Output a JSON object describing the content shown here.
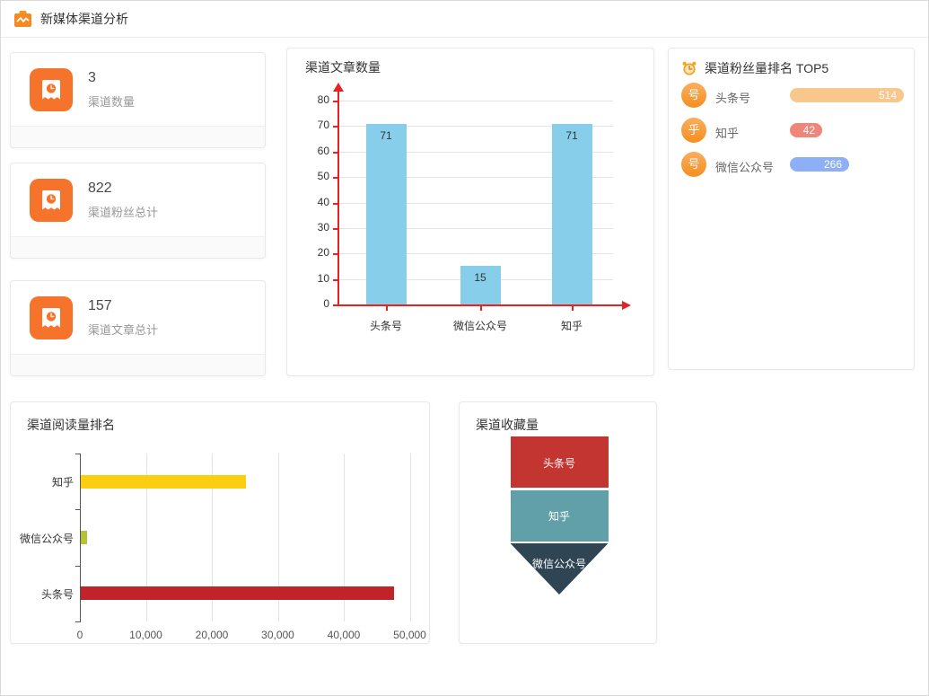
{
  "header": {
    "title": "新媒体渠道分析"
  },
  "palette": {
    "accent_orange": "#F6732B",
    "avatar_gradient_top": "#FBAE5E",
    "avatar_gradient_bottom": "#F58E1E",
    "panel_border": "#e8e8e8",
    "grid_line": "#e3e3e3"
  },
  "stats": [
    {
      "value": "3",
      "label": "渠道数量"
    },
    {
      "value": "822",
      "label": "渠道粉丝总计"
    },
    {
      "value": "157",
      "label": "渠道文章总计"
    }
  ],
  "chart_data": [
    {
      "type": "bar",
      "title": "渠道文章数量",
      "categories": [
        "头条号",
        "微信公众号",
        "知乎"
      ],
      "values": [
        71,
        15,
        71
      ],
      "ylim": [
        0,
        80
      ],
      "ytick_step": 10,
      "bar_color": "#87CEEB",
      "axis_color": "#E62222",
      "value_label_color": "#333333",
      "grid": true,
      "legend": "none"
    },
    {
      "type": "bar",
      "subtype": "ranking-pills",
      "title": "渠道粉丝量排名 TOP5",
      "max_value": 514,
      "items": [
        {
          "label": "头条号",
          "avatar_char": "号",
          "value": 514,
          "color": "#F7C78C"
        },
        {
          "label": "知乎",
          "avatar_char": "乎",
          "value": 42,
          "color": "#F0857A"
        },
        {
          "label": "微信公众号",
          "avatar_char": "号",
          "value": 266,
          "color": "#8CAFF5"
        }
      ]
    },
    {
      "type": "bar",
      "orientation": "horizontal",
      "title": "渠道阅读量排名",
      "categories": [
        "知乎",
        "微信公众号",
        "头条号"
      ],
      "values": [
        25000,
        900,
        47500
      ],
      "colors": [
        "#FCCE10",
        "#B5C334",
        "#C1232B"
      ],
      "xlim": [
        0,
        50000
      ],
      "xtick_step": 10000,
      "xtick_labels": [
        "0",
        "10,000",
        "20,000",
        "30,000",
        "40,000",
        "50,000"
      ],
      "grid": true,
      "legend": "none"
    },
    {
      "type": "funnel",
      "title": "渠道收藏量",
      "items": [
        {
          "label": "头条号",
          "color": "#C23531"
        },
        {
          "label": "知乎",
          "color": "#61A0A8"
        },
        {
          "label": "微信公众号",
          "color": "#2F4554"
        }
      ]
    }
  ]
}
